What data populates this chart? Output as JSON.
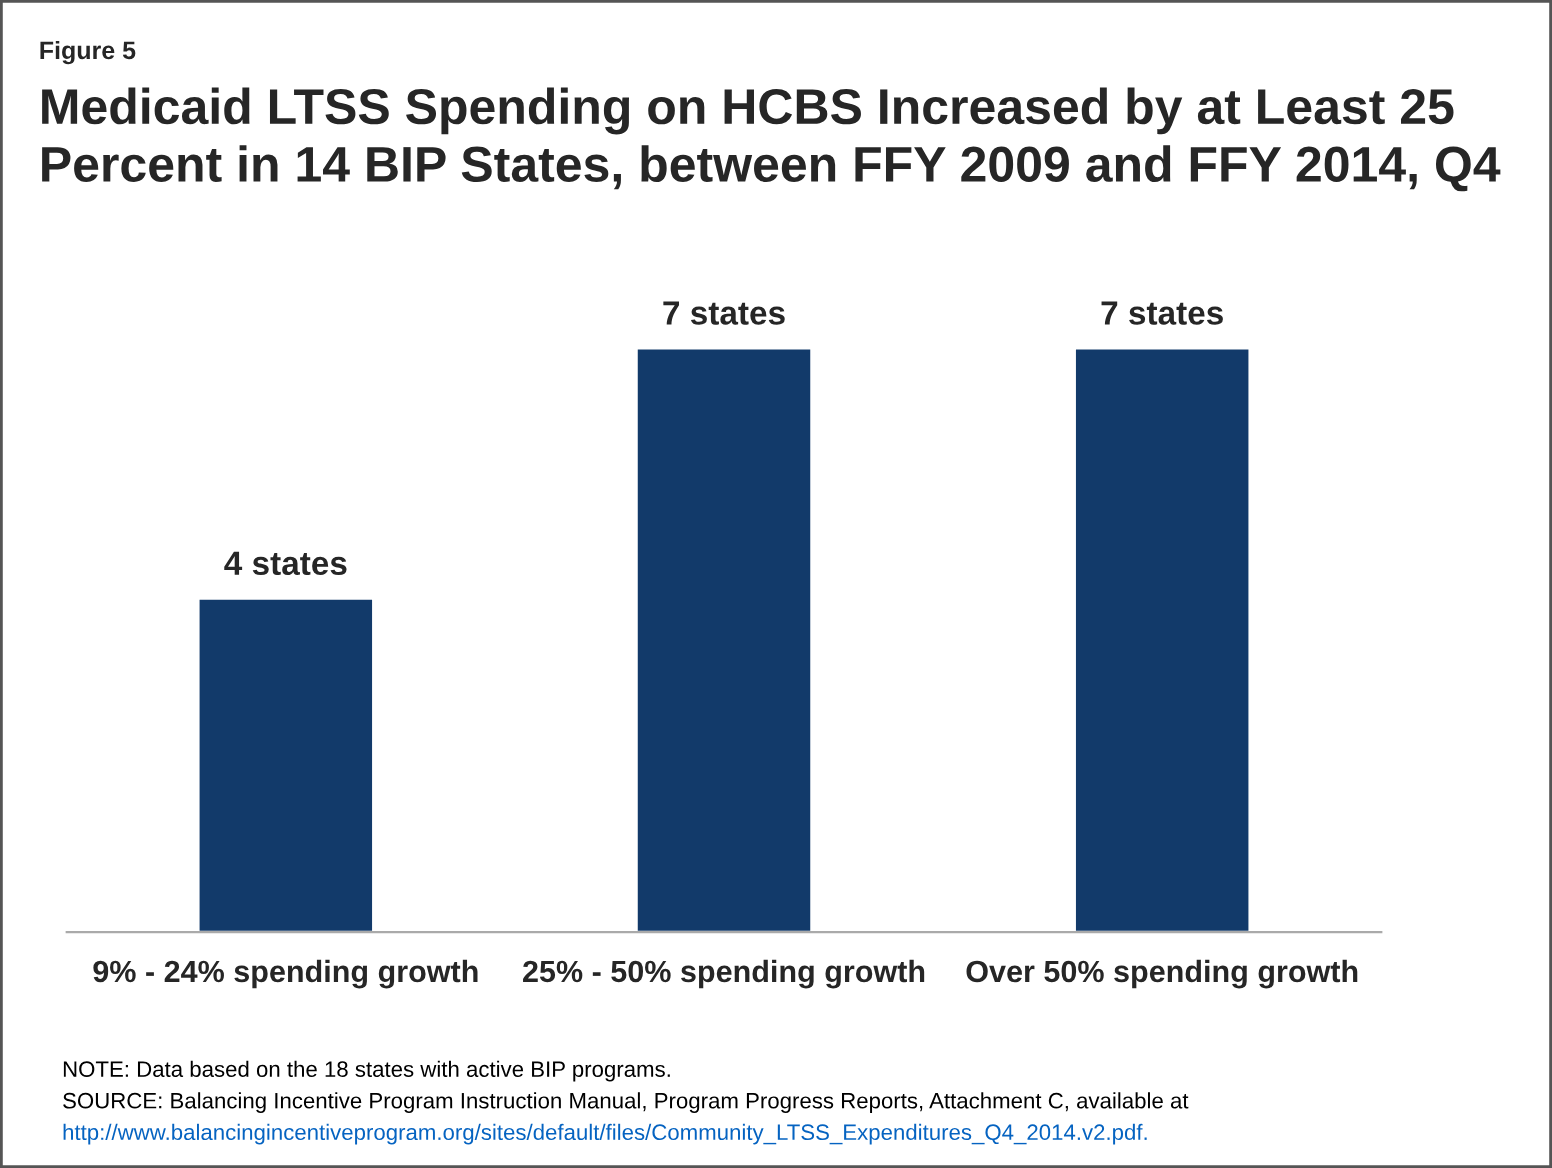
{
  "chart_data": {
    "type": "bar",
    "title": "Medicaid LTSS Spending on HCBS Increased by at Least 25\nPercent in 14 BIP States, between FFY 2009 and FFY 2014, Q4",
    "categories": [
      "9% - 24% spending growth",
      "25% - 50% spending growth",
      "Over 50% spending growth"
    ],
    "values": [
      4,
      7,
      7
    ],
    "value_labels": [
      "4 states",
      "7 states",
      "7 states"
    ],
    "color": "#123a6a",
    "tick_labels": "x",
    "grid": false,
    "legend": false,
    "annotations": [
      "Figure 5",
      "NOTE: Data based on the 18 states with active BIP programs.",
      "SOURCE: Balancing Incentive Program Instruction Manual, Program Progress Reports, Attachment C, available at",
      "http://www.balancingincentiveprogram.org/sites/default/files/Community_LTSS_Expenditures_Q4_2014.v2.pdf."
    ]
  }
}
